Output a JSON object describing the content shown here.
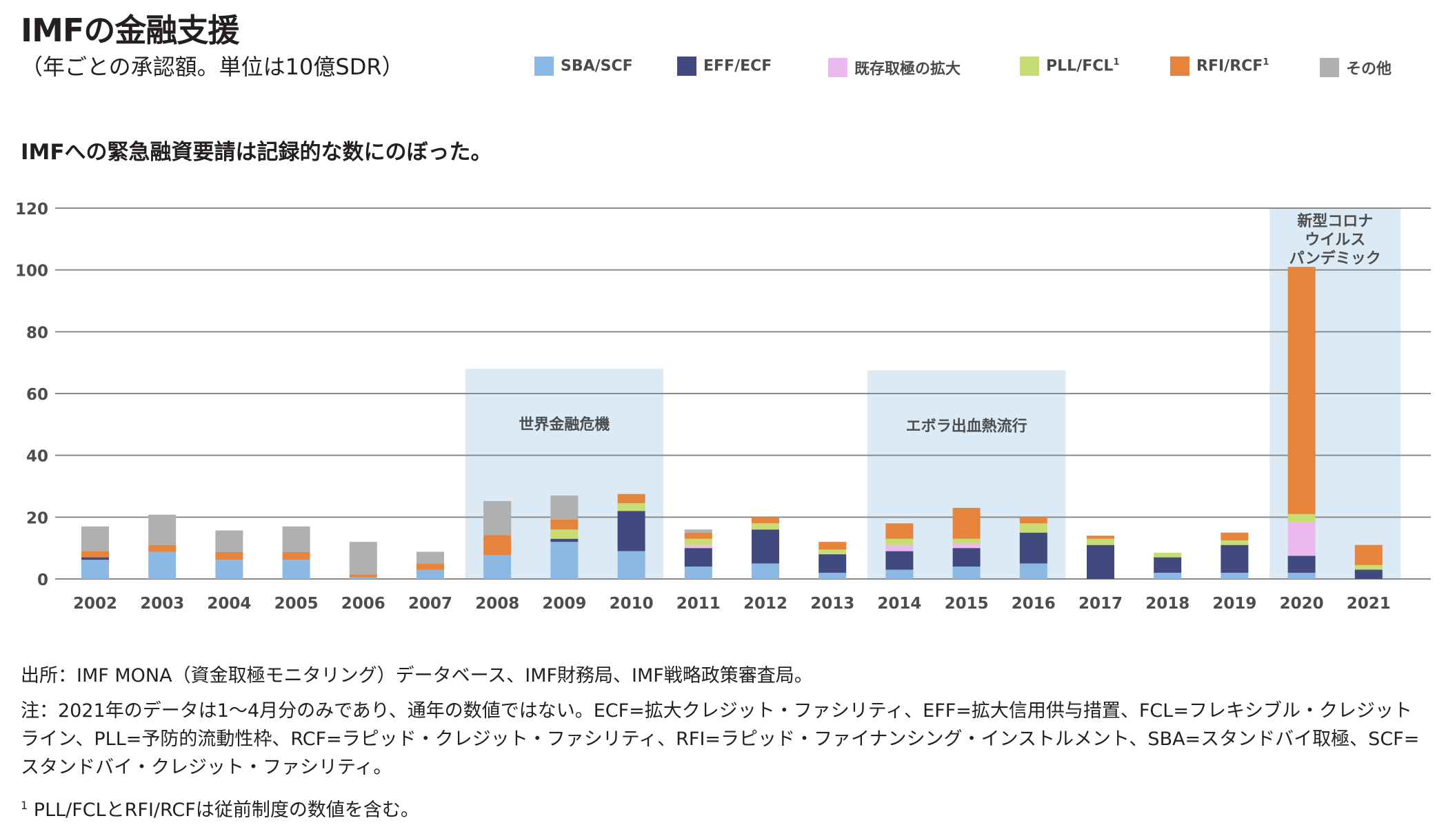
{
  "title": "IMFの金融支援",
  "subtitle": "（年ごとの承認額。単位は10億SDR）",
  "headline": "IMFへの緊急融資要請は記録的な数にのぼった。",
  "legend": [
    {
      "label": "SBA/SCF",
      "sup": "",
      "color": "#8cb9e3"
    },
    {
      "label": "EFF/ECF",
      "sup": "",
      "color": "#404a7e"
    },
    {
      "label": "既存取極の拡大",
      "sup": "",
      "color": "#ebb9ee"
    },
    {
      "label": "PLL/FCL",
      "sup": "1",
      "color": "#c7dd73"
    },
    {
      "label": "RFI/RCF",
      "sup": "1",
      "color": "#e7843b"
    },
    {
      "label": "その他",
      "sup": "",
      "color": "#b0b0b0"
    }
  ],
  "chart_data": {
    "type": "bar",
    "stacked": true,
    "categories": [
      "2002",
      "2003",
      "2004",
      "2005",
      "2006",
      "2007",
      "2008",
      "2009",
      "2010",
      "2011",
      "2012",
      "2013",
      "2014",
      "2015",
      "2016",
      "2017",
      "2018",
      "2019",
      "2020",
      "2021"
    ],
    "series": [
      {
        "name": "SBA/SCF",
        "color": "#8cb9e3",
        "values": [
          6.2,
          8.8,
          6.2,
          6.2,
          0.5,
          3.0,
          7.7,
          12.0,
          9.0,
          4.0,
          5.0,
          2.0,
          3.0,
          4.0,
          5.0,
          0,
          2.0,
          2.0,
          2.0,
          0
        ]
      },
      {
        "name": "EFF/ECF",
        "color": "#404a7e",
        "values": [
          0.8,
          0,
          0,
          0,
          0,
          0,
          0,
          1.0,
          13.0,
          6.0,
          11.0,
          6.0,
          6.0,
          6.0,
          10.0,
          11.0,
          5.0,
          9.0,
          5.5,
          3.0
        ]
      },
      {
        "name": "既存取極の拡大",
        "color": "#ebb9ee",
        "values": [
          0,
          0,
          0,
          0,
          0,
          0,
          0,
          0,
          0,
          1.0,
          0,
          0,
          2.0,
          1.5,
          0,
          0,
          0,
          0,
          11.0,
          0
        ]
      },
      {
        "name": "PLL/FCL",
        "color": "#c7dd73",
        "values": [
          0,
          0,
          0,
          0,
          0,
          0,
          0,
          3.0,
          2.5,
          2.0,
          2.0,
          1.5,
          2.0,
          1.5,
          3.0,
          2.0,
          1.5,
          1.5,
          2.5,
          1.5
        ]
      },
      {
        "name": "RFI/RCF",
        "color": "#e7843b",
        "values": [
          2.0,
          2.2,
          2.5,
          2.5,
          1.0,
          2.0,
          6.5,
          3.2,
          3.0,
          2.0,
          2.0,
          2.5,
          5.0,
          10.0,
          2.0,
          1.0,
          0,
          2.5,
          80.0,
          6.5
        ]
      },
      {
        "name": "その他",
        "color": "#b0b0b0",
        "values": [
          8.0,
          9.8,
          7.0,
          8.3,
          10.5,
          3.8,
          11.0,
          7.8,
          0,
          1.0,
          0,
          0,
          0,
          0,
          0,
          0,
          0,
          0,
          0,
          0
        ]
      }
    ],
    "ylim": [
      0,
      120
    ],
    "yticks": [
      0,
      20,
      40,
      60,
      80,
      100,
      120
    ],
    "grid": true,
    "legend_position": "top",
    "highlight_bands": [
      {
        "label": "世界金融危機",
        "from": "2008",
        "to": "2010",
        "top": 68
      },
      {
        "label": "エボラ出血熱流行",
        "from": "2014",
        "to": "2016",
        "top": 67.5
      },
      {
        "label": "新型コロナ\nウイルス\nパンデミック",
        "from": "2020",
        "to": "2021",
        "top": 120
      }
    ],
    "band_color": "#dbeaf5"
  },
  "notes": {
    "source": "出所：IMF MONA（資金取極モニタリング）データベース、IMF財務局、IMF戦略政策審査局。",
    "note": "注：2021年のデータは1～4月分のみであり、通年の数値ではない。ECF=拡大クレジット・ファシリティ、EFF=拡大信用供与措置、FCL=フレキシブル・クレジットライン、PLL=予防的流動性枠、RCF=ラピッド・クレジット・ファシリティ、RFI=ラピッド・ファイナンシング・インストルメント、SBA=スタンドバイ取極、SCF=スタンドバイ・クレジット・ファシリティ。",
    "footnote_mark": "1",
    "footnote": "PLL/FCLとRFI/RCFは従前制度の数値を含む。"
  }
}
